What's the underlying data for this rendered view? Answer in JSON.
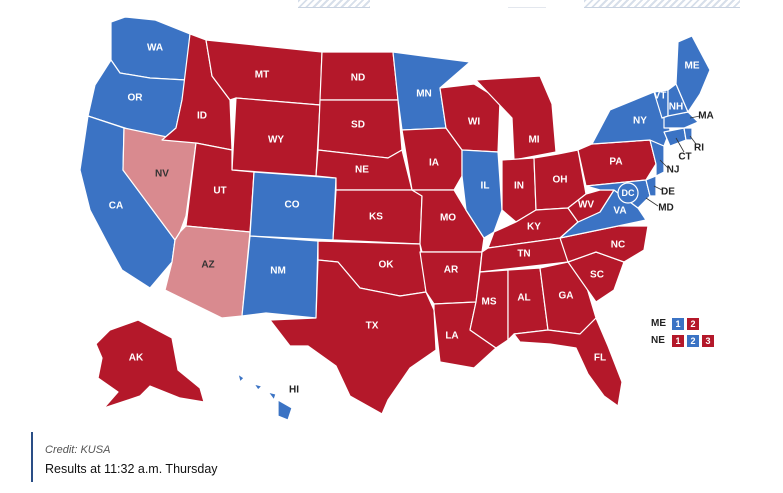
{
  "colors": {
    "dem": "#3b73c4",
    "rep": "#b4182a",
    "rep_lean": "#d98a8f"
  },
  "states": [
    {
      "code": "WA",
      "label": "WA",
      "status": "dem"
    },
    {
      "code": "OR",
      "label": "OR",
      "status": "dem"
    },
    {
      "code": "CA",
      "label": "CA",
      "status": "dem"
    },
    {
      "code": "NV",
      "label": "NV",
      "status": "rep_lean"
    },
    {
      "code": "ID",
      "label": "ID",
      "status": "rep"
    },
    {
      "code": "MT",
      "label": "MT",
      "status": "rep"
    },
    {
      "code": "WY",
      "label": "WY",
      "status": "rep"
    },
    {
      "code": "UT",
      "label": "UT",
      "status": "rep"
    },
    {
      "code": "AZ",
      "label": "AZ",
      "status": "rep_lean"
    },
    {
      "code": "CO",
      "label": "CO",
      "status": "dem"
    },
    {
      "code": "NM",
      "label": "NM",
      "status": "dem"
    },
    {
      "code": "ND",
      "label": "ND",
      "status": "rep"
    },
    {
      "code": "SD",
      "label": "SD",
      "status": "rep"
    },
    {
      "code": "NE",
      "label": "NE",
      "status": "rep"
    },
    {
      "code": "KS",
      "label": "KS",
      "status": "rep"
    },
    {
      "code": "OK",
      "label": "OK",
      "status": "rep"
    },
    {
      "code": "TX",
      "label": "TX",
      "status": "rep"
    },
    {
      "code": "MN",
      "label": "MN",
      "status": "dem"
    },
    {
      "code": "IA",
      "label": "IA",
      "status": "rep"
    },
    {
      "code": "MO",
      "label": "MO",
      "status": "rep"
    },
    {
      "code": "AR",
      "label": "AR",
      "status": "rep"
    },
    {
      "code": "LA",
      "label": "LA",
      "status": "rep"
    },
    {
      "code": "WI",
      "label": "WI",
      "status": "rep"
    },
    {
      "code": "IL",
      "label": "IL",
      "status": "dem"
    },
    {
      "code": "MI",
      "label": "MI",
      "status": "rep"
    },
    {
      "code": "IN",
      "label": "IN",
      "status": "rep"
    },
    {
      "code": "OH",
      "label": "OH",
      "status": "rep"
    },
    {
      "code": "KY",
      "label": "KY",
      "status": "rep"
    },
    {
      "code": "TN",
      "label": "TN",
      "status": "rep"
    },
    {
      "code": "MS",
      "label": "MS",
      "status": "rep"
    },
    {
      "code": "AL",
      "label": "AL",
      "status": "rep"
    },
    {
      "code": "GA",
      "label": "GA",
      "status": "rep"
    },
    {
      "code": "FL",
      "label": "FL",
      "status": "rep"
    },
    {
      "code": "SC",
      "label": "SC",
      "status": "rep"
    },
    {
      "code": "NC",
      "label": "NC",
      "status": "rep"
    },
    {
      "code": "VA",
      "label": "VA",
      "status": "dem"
    },
    {
      "code": "WV",
      "label": "WV",
      "status": "rep"
    },
    {
      "code": "PA",
      "label": "PA",
      "status": "rep"
    },
    {
      "code": "NY",
      "label": "NY",
      "status": "dem"
    },
    {
      "code": "VT",
      "label": "VT",
      "status": "dem"
    },
    {
      "code": "NH",
      "label": "NH",
      "status": "dem"
    },
    {
      "code": "ME",
      "label": "ME",
      "status": "dem"
    },
    {
      "code": "MA",
      "label": "MA",
      "status": "dem"
    },
    {
      "code": "RI",
      "label": "RI",
      "status": "dem"
    },
    {
      "code": "CT",
      "label": "CT",
      "status": "dem"
    },
    {
      "code": "NJ",
      "label": "NJ",
      "status": "dem"
    },
    {
      "code": "DE",
      "label": "DE",
      "status": "dem"
    },
    {
      "code": "MD",
      "label": "MD",
      "status": "dem"
    },
    {
      "code": "DC",
      "label": "DC",
      "status": "dem"
    },
    {
      "code": "AK",
      "label": "AK",
      "status": "rep"
    },
    {
      "code": "HI",
      "label": "HI",
      "status": "dem"
    }
  ],
  "split_legend": [
    {
      "state": "ME",
      "districts": [
        {
          "label": "1",
          "status": "dem"
        },
        {
          "label": "2",
          "status": "rep"
        }
      ]
    },
    {
      "state": "NE",
      "districts": [
        {
          "label": "1",
          "status": "rep"
        },
        {
          "label": "2",
          "status": "dem"
        },
        {
          "label": "3",
          "status": "rep"
        }
      ]
    }
  ],
  "caption": {
    "credit": "Credit: KUSA",
    "results": "Results at 11:32 a.m. Thursday"
  }
}
